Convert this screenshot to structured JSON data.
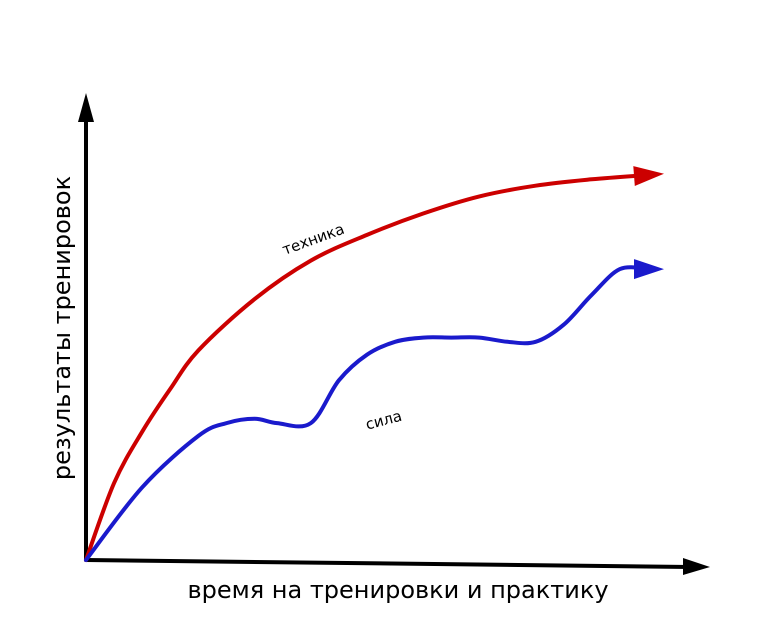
{
  "chart_data": {
    "type": "line",
    "xlabel": "время на тренировки и практику",
    "ylabel": "результаты тренировок",
    "grid": false,
    "legend": "none",
    "axes": {
      "x_ticks": false,
      "y_ticks": false,
      "color": "#000000"
    },
    "series": [
      {
        "name": "техника",
        "color": "#cc0000",
        "x": [
          0,
          5,
          10,
          15,
          20,
          30,
          40,
          50,
          60,
          70,
          80,
          90,
          100
        ],
        "y": [
          0,
          18,
          30,
          40,
          49,
          61,
          70,
          76,
          81,
          85,
          87.5,
          89,
          90
        ]
      },
      {
        "name": "сила",
        "color": "#1a1acc",
        "x": [
          0,
          10,
          20,
          25,
          30,
          34,
          40,
          45,
          50,
          55,
          60,
          65,
          70,
          75,
          80,
          85,
          90,
          95,
          100
        ],
        "y": [
          0,
          17,
          29,
          32,
          33,
          32,
          32,
          42,
          48,
          51,
          52,
          52,
          52,
          51,
          51,
          55,
          62,
          68,
          68
        ]
      }
    ]
  }
}
